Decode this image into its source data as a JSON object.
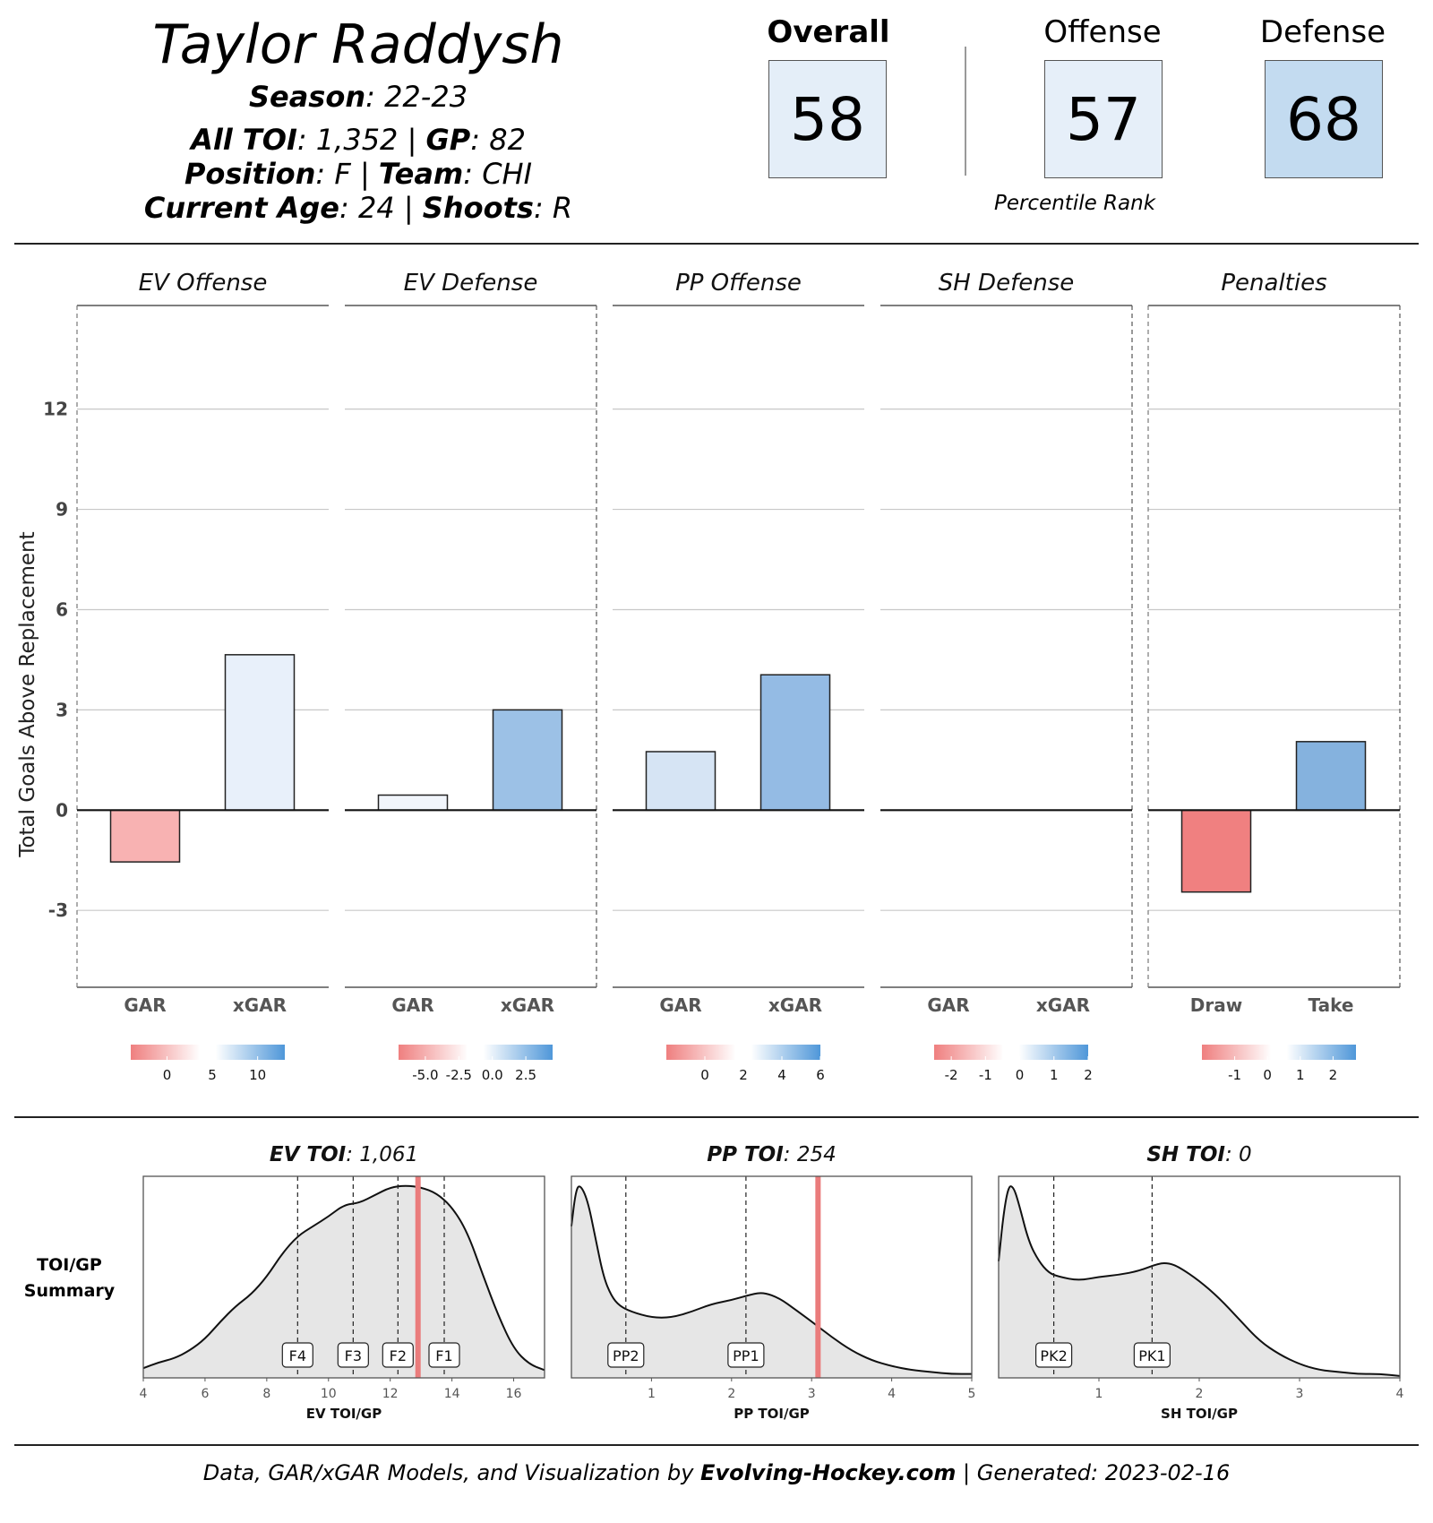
{
  "player": {
    "name": "Taylor Raddysh",
    "season_label": "Season",
    "season": "22-23",
    "toi_label": "All TOI",
    "toi": "1,352",
    "gp_label": "GP",
    "gp": "82",
    "position_label": "Position",
    "position": "F",
    "team_label": "Team",
    "team": "CHI",
    "age_label": "Current Age",
    "age": "24",
    "shoots_label": "Shoots",
    "shoots": "R"
  },
  "ranks": {
    "overall": {
      "label": "Overall",
      "value": "58",
      "color": "#e4eef8"
    },
    "offense": {
      "label": "Offense",
      "value": "57",
      "color": "#e6eff9"
    },
    "defense": {
      "label": "Defense",
      "value": "68",
      "color": "#c3dbf0"
    },
    "caption": "Percentile Rank"
  },
  "chart_data": [
    {
      "type": "bar",
      "ylabel": "Total Goals Above Replacement",
      "ylim": [
        -5.3,
        15.1
      ],
      "yticks": [
        -3,
        0,
        3,
        6,
        9,
        12
      ],
      "grid": true,
      "panels": [
        {
          "title": "EV Offense",
          "categories": [
            "GAR",
            "xGAR"
          ],
          "values": [
            -1.55,
            4.65
          ],
          "colors": [
            "#f8b2b2",
            "#e8f0fa"
          ],
          "legend": {
            "ticks": [
              "0",
              "5",
              "10"
            ],
            "tick_values": [
              0,
              5,
              10
            ],
            "range": [
              -4,
              13
            ]
          }
        },
        {
          "title": "EV Defense",
          "categories": [
            "GAR",
            "xGAR"
          ],
          "values": [
            0.45,
            3.0
          ],
          "colors": [
            "#f1f5fb",
            "#9cc1e6"
          ],
          "legend": {
            "ticks": [
              "-5.0",
              "-2.5",
              "0.0",
              "2.5"
            ],
            "tick_values": [
              -5,
              -2.5,
              0,
              2.5
            ],
            "range": [
              -7,
              4.5
            ]
          }
        },
        {
          "title": "PP Offense",
          "categories": [
            "GAR",
            "xGAR"
          ],
          "values": [
            1.75,
            4.05
          ],
          "colors": [
            "#d6e4f4",
            "#94bbe4"
          ],
          "legend": {
            "ticks": [
              "0",
              "2",
              "4",
              "6"
            ],
            "tick_values": [
              0,
              2,
              4,
              6
            ],
            "range": [
              -2,
              6
            ]
          }
        },
        {
          "title": "SH Defense",
          "categories": [
            "GAR",
            "xGAR"
          ],
          "values": [
            0,
            0
          ],
          "colors": [
            "#ffffff",
            "#ffffff"
          ],
          "legend": {
            "ticks": [
              "-2",
              "-1",
              "0",
              "1",
              "2"
            ],
            "tick_values": [
              -2,
              -1,
              0,
              1,
              2
            ],
            "range": [
              -2.5,
              2
            ]
          }
        },
        {
          "title": "Penalties",
          "categories": [
            "Draw",
            "Take"
          ],
          "values": [
            -2.45,
            2.05
          ],
          "colors": [
            "#f08080",
            "#85b2de"
          ],
          "legend": {
            "ticks": [
              "-1",
              "0",
              "1",
              "2"
            ],
            "tick_values": [
              -1,
              0,
              1,
              2
            ],
            "range": [
              -2,
              2.7
            ]
          }
        }
      ]
    },
    {
      "type": "area",
      "row_label_1": "TOI/GP",
      "row_label_2": "Summary",
      "panels": [
        {
          "title_bold": "EV TOI",
          "title_value": "1,061",
          "xlabel": "EV TOI/GP",
          "xlim": [
            4,
            17
          ],
          "xticks": [
            4,
            6,
            8,
            10,
            12,
            14,
            16
          ],
          "xtick_labels": [
            "4",
            "6",
            "8",
            "10",
            "12",
            "14",
            "16"
          ],
          "player_value": 12.9,
          "markers": [
            {
              "label": "F4",
              "x": 9.0
            },
            {
              "label": "F3",
              "x": 10.8
            },
            {
              "label": "F2",
              "x": 12.25
            },
            {
              "label": "F1",
              "x": 13.75
            }
          ],
          "density_x": [
            4,
            4.5,
            5,
            5.5,
            6,
            6.5,
            7,
            7.5,
            8,
            8.5,
            9,
            9.5,
            10,
            10.5,
            11,
            11.5,
            12,
            12.5,
            13,
            13.5,
            14,
            14.5,
            15,
            15.5,
            16,
            16.5,
            17
          ],
          "density_y": [
            0.05,
            0.08,
            0.1,
            0.14,
            0.2,
            0.29,
            0.37,
            0.43,
            0.52,
            0.64,
            0.73,
            0.78,
            0.83,
            0.89,
            0.9,
            0.94,
            0.98,
            0.99,
            0.98,
            0.95,
            0.88,
            0.75,
            0.53,
            0.32,
            0.15,
            0.07,
            0.04
          ]
        },
        {
          "title_bold": "PP TOI",
          "title_value": "254",
          "xlabel": "PP TOI/GP",
          "xlim": [
            0,
            5
          ],
          "xticks": [
            1,
            2,
            3,
            4,
            5
          ],
          "xtick_labels": [
            "1",
            "2",
            "3",
            "4",
            "5"
          ],
          "player_value": 3.08,
          "markers": [
            {
              "label": "PP2",
              "x": 0.68
            },
            {
              "label": "PP1",
              "x": 2.18
            }
          ],
          "density_x": [
            0,
            0.05,
            0.1,
            0.2,
            0.3,
            0.4,
            0.5,
            0.6,
            0.75,
            1,
            1.25,
            1.5,
            1.75,
            2,
            2.25,
            2.4,
            2.6,
            2.8,
            3,
            3.25,
            3.5,
            3.75,
            4,
            4.25,
            4.5,
            4.75,
            5
          ],
          "density_y": [
            0.78,
            0.95,
            1.0,
            0.92,
            0.72,
            0.52,
            0.42,
            0.37,
            0.34,
            0.31,
            0.31,
            0.34,
            0.38,
            0.4,
            0.43,
            0.44,
            0.41,
            0.35,
            0.29,
            0.21,
            0.14,
            0.09,
            0.06,
            0.04,
            0.03,
            0.02,
            0.02
          ]
        },
        {
          "title_bold": "SH TOI",
          "title_value": "0",
          "xlabel": "SH TOI/GP",
          "xlim": [
            0,
            4
          ],
          "xticks": [
            1,
            2,
            3,
            4
          ],
          "xtick_labels": [
            "1",
            "2",
            "3",
            "4"
          ],
          "player_value": null,
          "markers": [
            {
              "label": "PK2",
              "x": 0.55
            },
            {
              "label": "PK1",
              "x": 1.53
            }
          ],
          "density_x": [
            0,
            0.05,
            0.1,
            0.15,
            0.2,
            0.3,
            0.4,
            0.5,
            0.6,
            0.8,
            1.0,
            1.2,
            1.4,
            1.6,
            1.7,
            1.8,
            2.0,
            2.2,
            2.4,
            2.6,
            2.8,
            3.0,
            3.2,
            3.4,
            3.6,
            3.8,
            4.0
          ],
          "density_y": [
            0.6,
            0.85,
            0.99,
            0.98,
            0.9,
            0.7,
            0.6,
            0.54,
            0.52,
            0.5,
            0.52,
            0.53,
            0.55,
            0.59,
            0.59,
            0.57,
            0.5,
            0.41,
            0.3,
            0.19,
            0.12,
            0.07,
            0.04,
            0.03,
            0.02,
            0.02,
            0.01
          ]
        }
      ]
    }
  ],
  "footer": {
    "prefix": "Data, GAR/xGAR Models, and Visualization by ",
    "brand": "Evolving-Hockey.com",
    "suffix": " | Generated:  2023-02-16"
  }
}
